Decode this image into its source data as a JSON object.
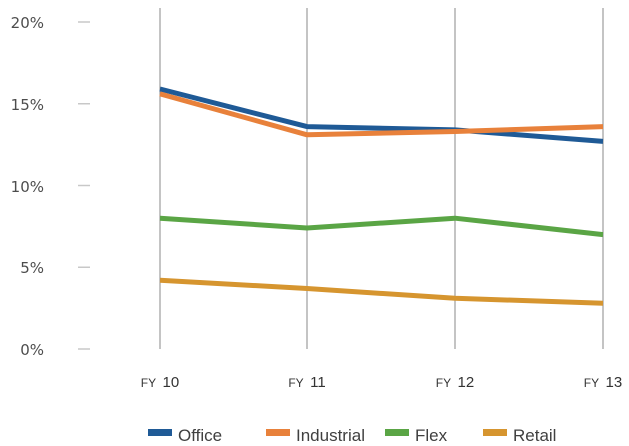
{
  "chart_data": {
    "type": "line",
    "title": "",
    "xlabel": "",
    "ylabel": "",
    "x": [
      "FY 10",
      "FY 11",
      "FY 12",
      "FY 13"
    ],
    "x_ticks": [
      {
        "prefix": "FY",
        "year": "10"
      },
      {
        "prefix": "FY",
        "year": "11"
      },
      {
        "prefix": "FY",
        "year": "12"
      },
      {
        "prefix": "FY",
        "year": "13"
      }
    ],
    "y_ticks": [
      "0%",
      "5%",
      "10%",
      "15%",
      "20%"
    ],
    "ylim": [
      0,
      20
    ],
    "grid": "vertical lines at categories",
    "legend_position": "bottom",
    "series": [
      {
        "name": "Office",
        "color": "#1f5a96",
        "values": [
          15.9,
          13.6,
          13.4,
          12.7
        ]
      },
      {
        "name": "Industrial",
        "color": "#e8813b",
        "values": [
          15.6,
          13.1,
          13.3,
          13.6
        ]
      },
      {
        "name": "Flex",
        "color": "#5aa545",
        "values": [
          8.0,
          7.4,
          8.0,
          7.0
        ]
      },
      {
        "name": "Retail",
        "color": "#d6952f",
        "values": [
          4.2,
          3.7,
          3.1,
          2.8
        ]
      }
    ]
  }
}
